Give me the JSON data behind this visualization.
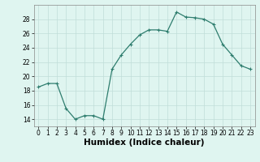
{
  "x": [
    0,
    1,
    2,
    3,
    4,
    5,
    6,
    7,
    8,
    9,
    10,
    11,
    12,
    13,
    14,
    15,
    16,
    17,
    18,
    19,
    20,
    21,
    22,
    23
  ],
  "y": [
    18.5,
    19.0,
    19.0,
    15.5,
    14.0,
    14.5,
    14.5,
    14.0,
    21.0,
    23.0,
    24.5,
    25.8,
    26.5,
    26.5,
    26.3,
    29.0,
    28.3,
    28.2,
    28.0,
    27.3,
    24.5,
    23.0,
    21.5,
    21.0
  ],
  "line_color": "#2e7d6e",
  "marker": "+",
  "bg_color": "#dff5f0",
  "grid_color": "#c0ddd8",
  "grid_color_minor": "#d8ecea",
  "xlabel": "Humidex (Indice chaleur)",
  "xlim": [
    -0.5,
    23.5
  ],
  "ylim": [
    13.0,
    30.0
  ],
  "yticks": [
    14,
    16,
    18,
    20,
    22,
    24,
    26,
    28
  ],
  "xticks": [
    0,
    1,
    2,
    3,
    4,
    5,
    6,
    7,
    8,
    9,
    10,
    11,
    12,
    13,
    14,
    15,
    16,
    17,
    18,
    19,
    20,
    21,
    22,
    23
  ],
  "tick_label_fontsize": 5.5,
  "xlabel_fontsize": 7.5,
  "line_width": 0.9,
  "marker_size": 3.5
}
